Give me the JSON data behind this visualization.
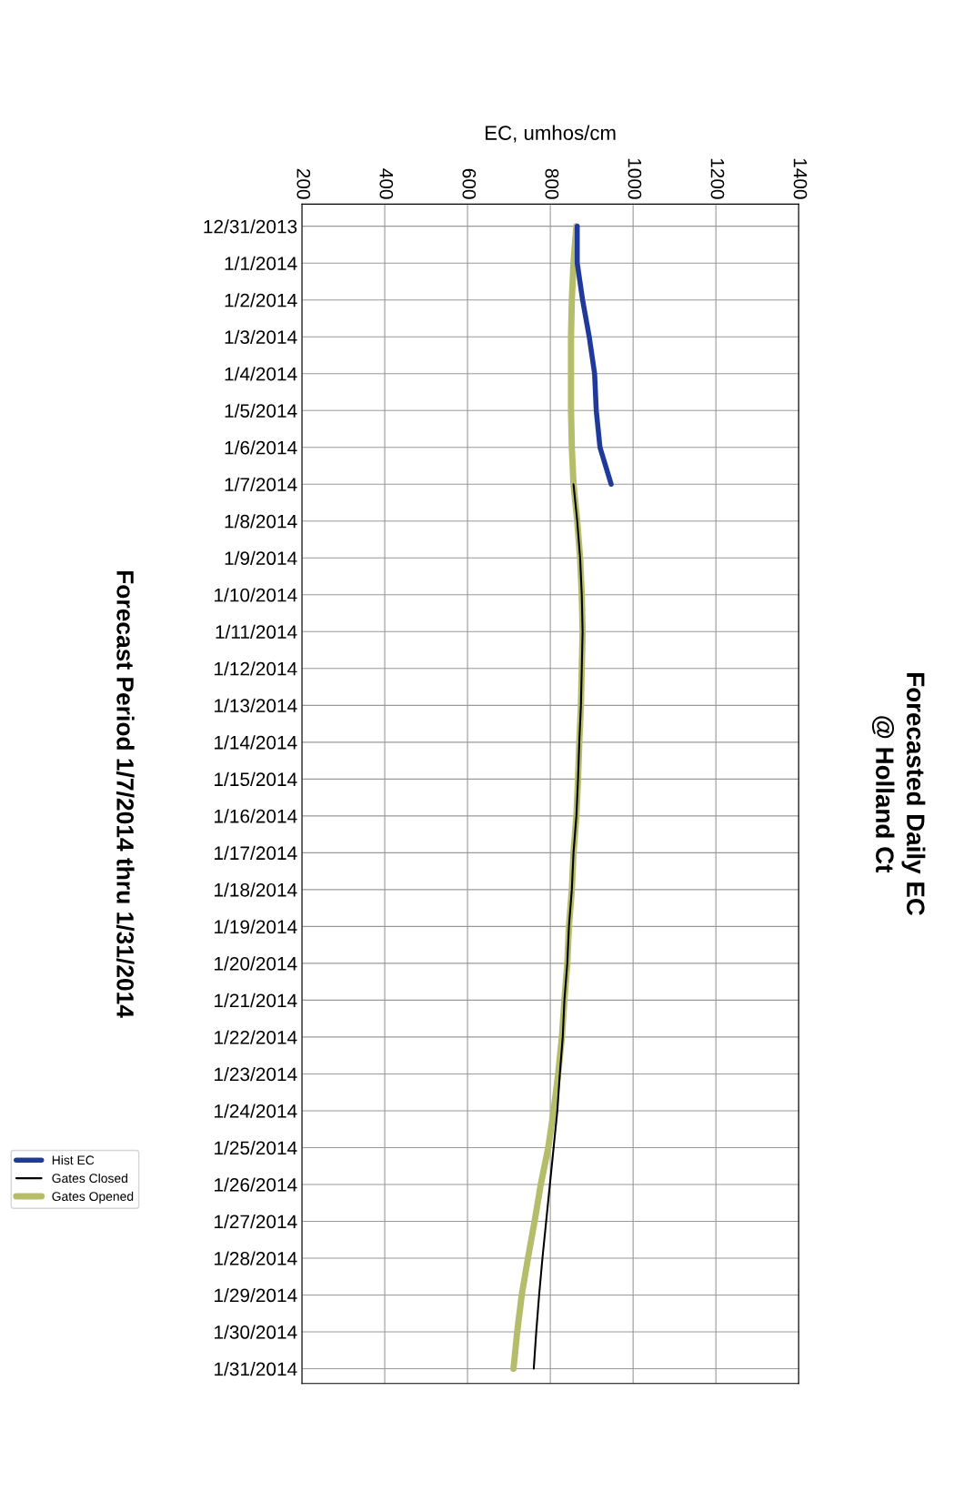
{
  "chart_data": {
    "type": "line",
    "orientation": "horizontal",
    "title": "Forecasted Daily EC\n@ Holland Ct",
    "xlabel": "EC, umhos/cm",
    "annotations": [
      "Forecast Period 1/7/2014 thru 1/31/2014"
    ],
    "categories": [
      "12/31/2013",
      "1/1/2014",
      "1/2/2014",
      "1/3/2014",
      "1/4/2014",
      "1/5/2014",
      "1/6/2014",
      "1/7/2014",
      "1/8/2014",
      "1/9/2014",
      "1/10/2014",
      "1/11/2014",
      "1/12/2014",
      "1/13/2014",
      "1/14/2014",
      "1/15/2014",
      "1/16/2014",
      "1/17/2014",
      "1/18/2014",
      "1/19/2014",
      "1/20/2014",
      "1/21/2014",
      "1/22/2014",
      "1/23/2014",
      "1/24/2014",
      "1/25/2014",
      "1/26/2014",
      "1/27/2014",
      "1/28/2014",
      "1/29/2014",
      "1/30/2014",
      "1/31/2014"
    ],
    "series": [
      {
        "name": "Hist EC",
        "color": "#1f3a9a",
        "values": [
          865,
          865,
          878,
          894,
          907,
          911,
          920,
          947,
          null,
          null,
          null,
          null,
          null,
          null,
          null,
          null,
          null,
          null,
          null,
          null,
          null,
          null,
          null,
          null,
          null,
          null,
          null,
          null,
          null,
          null,
          null,
          null
        ]
      },
      {
        "name": "Gates Closed",
        "color": "#000000",
        "values": [
          null,
          null,
          null,
          null,
          null,
          null,
          null,
          856,
          865,
          872,
          876,
          878,
          876,
          874,
          870,
          867,
          863,
          856,
          852,
          845,
          841,
          834,
          830,
          823,
          817,
          808,
          799,
          790,
          781,
          773,
          766,
          760
        ]
      },
      {
        "name": "Gates Opened",
        "color": "#b5bd6a",
        "values": [
          863,
          856,
          852,
          850,
          850,
          850,
          852,
          856,
          865,
          872,
          876,
          878,
          876,
          874,
          870,
          867,
          863,
          856,
          852,
          845,
          841,
          834,
          828,
          819,
          808,
          795,
          777,
          762,
          746,
          731,
          720,
          711
        ]
      }
    ],
    "xlim": [
      200,
      1400
    ],
    "xticks": [
      200,
      400,
      600,
      800,
      1000,
      1200,
      1400
    ],
    "grid": true,
    "legend": "left",
    "marker": "none",
    "line_style": "solid"
  }
}
